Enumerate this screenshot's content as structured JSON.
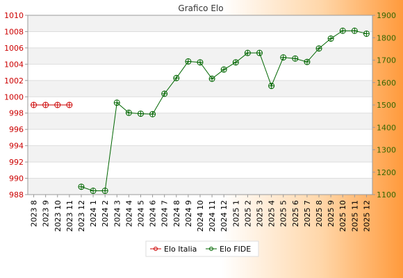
{
  "chart_data": {
    "type": "line",
    "title": "Grafico Elo",
    "categories": [
      "2023 8",
      "2023 9",
      "2023 10",
      "2023 11",
      "2023 12",
      "2024 1",
      "2024 2",
      "2024 3",
      "2024 4",
      "2024 5",
      "2024 6",
      "2024 7",
      "2024 8",
      "2024 9",
      "2024 10",
      "2024 11",
      "2024 12",
      "2025 1",
      "2025 2",
      "2025 3",
      "2025 4",
      "2025 5",
      "2025 6",
      "2025 7",
      "2025 8",
      "2025 9",
      "2025 10",
      "2025 11",
      "2025 12"
    ],
    "y_left": {
      "range": [
        988,
        1010
      ],
      "ticks": [
        988,
        990,
        992,
        994,
        996,
        998,
        1000,
        1002,
        1004,
        1006,
        1008,
        1010
      ],
      "color": "#cc0000"
    },
    "y_right": {
      "range": [
        1100,
        1900
      ],
      "ticks": [
        1100,
        1200,
        1300,
        1400,
        1500,
        1600,
        1700,
        1800,
        1900
      ],
      "color": "#336600"
    },
    "grid": true,
    "legend_position": "bottom-center",
    "series": [
      {
        "name": "Elo Italia",
        "axis": "left",
        "color": "#cc0000",
        "values": [
          999,
          999,
          999,
          999,
          null,
          null,
          null,
          null,
          null,
          null,
          null,
          null,
          null,
          null,
          null,
          null,
          null,
          null,
          null,
          null,
          null,
          null,
          null,
          null,
          null,
          null,
          null,
          null,
          null
        ]
      },
      {
        "name": "Elo FIDE",
        "axis": "right",
        "color": "#006600",
        "values": [
          null,
          null,
          null,
          null,
          1135,
          1117,
          1117,
          1510,
          1465,
          1461,
          1459,
          1550,
          1620,
          1694,
          1690,
          1617,
          1658,
          1690,
          1732,
          1732,
          1585,
          1712,
          1707,
          1692,
          1752,
          1796,
          1831,
          1831,
          1818
        ]
      }
    ]
  }
}
